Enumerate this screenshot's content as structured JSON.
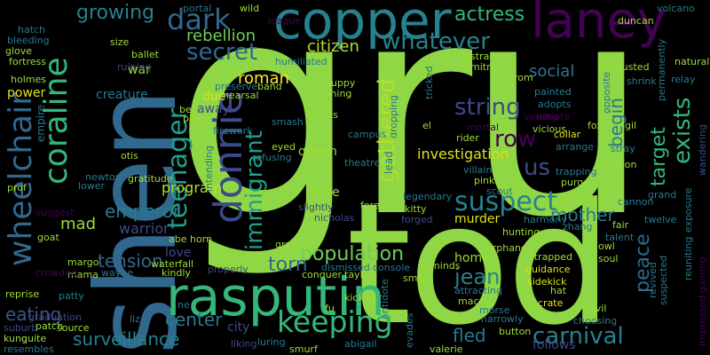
{
  "background": "#000000",
  "palette": [
    "#440154",
    "#3b528b",
    "#21908d",
    "#5dc963",
    "#fde725"
  ],
  "words": [
    {
      "text": "gru",
      "color": "#8fd744"
    },
    {
      "text": "tod",
      "color": "#8fd744"
    },
    {
      "text": "shen",
      "color": "#31688e"
    },
    {
      "text": "rasputin",
      "color": "#35b779"
    },
    {
      "text": "copper",
      "color": "#26828e"
    },
    {
      "text": "laney",
      "color": "#440154"
    },
    {
      "text": "donnie",
      "color": "#3e4989"
    },
    {
      "text": "wheelchair",
      "color": "#31688e"
    },
    {
      "text": "coraline",
      "color": "#35b779"
    },
    {
      "text": "keeping",
      "color": "#35b779"
    },
    {
      "text": "suspect",
      "color": "#26828e"
    },
    {
      "text": "dark",
      "color": "#31688e"
    },
    {
      "text": "teenager",
      "color": "#1f9e89"
    },
    {
      "text": "immigrant",
      "color": "#1f9e89"
    },
    {
      "text": "gathered",
      "color": "#b5de2b"
    },
    {
      "text": "whatever",
      "color": "#26828e"
    },
    {
      "text": "secret",
      "color": "#31688e"
    },
    {
      "text": "string",
      "color": "#3e4989"
    },
    {
      "text": "exists",
      "color": "#35b779"
    },
    {
      "text": "target",
      "color": "#35b779"
    },
    {
      "text": "carnival",
      "color": "#26828e"
    },
    {
      "text": "surveillance",
      "color": "#26828e"
    },
    {
      "text": "population",
      "color": "#6ece58"
    },
    {
      "text": "torn",
      "color": "#31688e"
    },
    {
      "text": "jean",
      "color": "#26828e"
    },
    {
      "text": "row",
      "color": "#440154"
    },
    {
      "text": "us",
      "color": "#3e4989"
    },
    {
      "text": "growing",
      "color": "#26828e"
    },
    {
      "text": "rebellion",
      "color": "#6ece58"
    },
    {
      "text": "actress",
      "color": "#35b779"
    },
    {
      "text": "citizen",
      "color": "#b5de2b"
    },
    {
      "text": "social",
      "color": "#2a788e"
    },
    {
      "text": "roman",
      "color": "#fde725"
    },
    {
      "text": "begin",
      "color": "#2a788e"
    },
    {
      "text": "program",
      "color": "#b5de2b"
    },
    {
      "text": "emperor",
      "color": "#2a788e"
    },
    {
      "text": "mother",
      "color": "#2a788e"
    },
    {
      "text": "peace",
      "color": "#31688e"
    },
    {
      "text": "tension",
      "color": "#31688e"
    },
    {
      "text": "investigation",
      "color": "#dde318"
    },
    {
      "text": "center",
      "color": "#2a788e"
    },
    {
      "text": "fled",
      "color": "#2a788e"
    },
    {
      "text": "eating",
      "color": "#3b528b"
    },
    {
      "text": "mad",
      "color": "#9fda3a"
    },
    {
      "text": "warrior",
      "color": "#3e4989"
    },
    {
      "text": "creature",
      "color": "#2a788e"
    },
    {
      "text": "queen",
      "color": "#9fda3a"
    },
    {
      "text": "tribe",
      "color": "#9fda3a"
    },
    {
      "text": "murder",
      "color": "#dde318"
    },
    {
      "text": "home",
      "color": "#9fda3a"
    },
    {
      "text": "follows",
      "color": "#3e4989"
    },
    {
      "text": "city",
      "color": "#3e4989"
    },
    {
      "text": "love",
      "color": "#3e4989"
    },
    {
      "text": "war",
      "color": "#9fda3a"
    },
    {
      "text": "power",
      "color": "#dde318"
    },
    {
      "text": "empire",
      "color": "#2a788e"
    },
    {
      "text": "due",
      "color": "#dde318"
    },
    {
      "text": "away",
      "color": "#3e4989"
    },
    {
      "text": "zhang",
      "color": "#2a788e"
    },
    {
      "text": "owl",
      "color": "#9fda3a"
    },
    {
      "text": "soul",
      "color": "#9fda3a"
    },
    {
      "text": "fox",
      "color": "#9fda3a"
    },
    {
      "text": "gil",
      "color": "#9fda3a"
    },
    {
      "text": "stray",
      "color": "#2a788e"
    },
    {
      "text": "minion",
      "color": "#9fda3a"
    },
    {
      "text": "cannon",
      "color": "#2a788e"
    },
    {
      "text": "grand",
      "color": "#2a788e"
    },
    {
      "text": "twelve",
      "color": "#2a788e"
    },
    {
      "text": "fair",
      "color": "#9fda3a"
    },
    {
      "text": "talent",
      "color": "#2a788e"
    },
    {
      "text": "inner",
      "color": "#9fda3a"
    },
    {
      "text": "harmony",
      "color": "#2a788e"
    },
    {
      "text": "orphaned",
      "color": "#9fda3a"
    },
    {
      "text": "hunting",
      "color": "#9fda3a"
    },
    {
      "text": "strapped",
      "color": "#9fda3a"
    },
    {
      "text": "guidance",
      "color": "#dde318"
    },
    {
      "text": "sidekick",
      "color": "#dde318"
    },
    {
      "text": "hat",
      "color": "#9fda3a"
    },
    {
      "text": "crate",
      "color": "#dde318"
    },
    {
      "text": "evil",
      "color": "#9fda3a"
    },
    {
      "text": "choosing",
      "color": "#2a788e"
    },
    {
      "text": "revived",
      "color": "#2a788e"
    },
    {
      "text": "suspected",
      "color": "#2a788e"
    },
    {
      "text": "reuniting",
      "color": "#2a788e"
    },
    {
      "text": "exposure",
      "color": "#2a788e"
    },
    {
      "text": "gaining",
      "color": "#440154"
    },
    {
      "text": "impressed",
      "color": "#440154"
    },
    {
      "text": "wandering",
      "color": "#3e4989"
    },
    {
      "text": "volcano",
      "color": "#2a788e"
    },
    {
      "text": "duncan",
      "color": "#9fda3a"
    },
    {
      "text": "natural",
      "color": "#9fda3a"
    },
    {
      "text": "relay",
      "color": "#2a788e"
    },
    {
      "text": "exhausted",
      "color": "#9fda3a"
    },
    {
      "text": "shrink",
      "color": "#2a788e"
    },
    {
      "text": "permanently",
      "color": "#2a788e"
    },
    {
      "text": "painted",
      "color": "#2a788e"
    },
    {
      "text": "adopts",
      "color": "#2a788e"
    },
    {
      "text": "opposite",
      "color": "#2a788e"
    },
    {
      "text": "initiate",
      "color": "#440154"
    },
    {
      "text": "vowing",
      "color": "#440154"
    },
    {
      "text": "vicious",
      "color": "#9fda3a"
    },
    {
      "text": "collar",
      "color": "#dde318"
    },
    {
      "text": "arrange",
      "color": "#2a788e"
    },
    {
      "text": "rider",
      "color": "#9fda3a"
    },
    {
      "text": "mortal",
      "color": "#440154"
    },
    {
      "text": "trapping",
      "color": "#2a788e"
    },
    {
      "text": "purge",
      "color": "#9fda3a"
    },
    {
      "text": "villain",
      "color": "#2a788e"
    },
    {
      "text": "pink",
      "color": "#9fda3a"
    },
    {
      "text": "scout",
      "color": "#2a788e"
    },
    {
      "text": "kitty",
      "color": "#9fda3a"
    },
    {
      "text": "forged",
      "color": "#3e4989"
    },
    {
      "text": "legendary",
      "color": "#2a788e"
    },
    {
      "text": "forever",
      "color": "#9fda3a"
    },
    {
      "text": "slightly",
      "color": "#3e4989"
    },
    {
      "text": "nicholas",
      "color": "#3e4989"
    },
    {
      "text": "granny",
      "color": "#9fda3a"
    },
    {
      "text": "da",
      "color": "#9fda3a"
    },
    {
      "text": "conquer",
      "color": "#9fda3a"
    },
    {
      "text": "dismissed",
      "color": "#2a788e"
    },
    {
      "text": "console",
      "color": "#2a788e"
    },
    {
      "text": "taylor",
      "color": "#9fda3a"
    },
    {
      "text": "reminds",
      "color": "#9fda3a"
    },
    {
      "text": "smile",
      "color": "#9fda3a"
    },
    {
      "text": "attracting",
      "color": "#2a788e"
    },
    {
      "text": "mac",
      "color": "#9fda3a"
    },
    {
      "text": "morse",
      "color": "#2a788e"
    },
    {
      "text": "narrowly",
      "color": "#2a788e"
    },
    {
      "text": "button",
      "color": "#9fda3a"
    },
    {
      "text": "valerie",
      "color": "#9fda3a"
    },
    {
      "text": "evades",
      "color": "#2a788e"
    },
    {
      "text": "kicked",
      "color": "#9fda3a"
    },
    {
      "text": "antidote",
      "color": "#2a788e"
    },
    {
      "text": "fu",
      "color": "#9fda3a"
    },
    {
      "text": "abigail",
      "color": "#2a788e"
    },
    {
      "text": "smurf",
      "color": "#9fda3a"
    },
    {
      "text": "luring",
      "color": "#2a788e"
    },
    {
      "text": "liking",
      "color": "#3e4989"
    },
    {
      "text": "ne",
      "color": "#2a788e"
    },
    {
      "text": "properly",
      "color": "#3e4989"
    },
    {
      "text": "kindly",
      "color": "#9fda3a"
    },
    {
      "text": "waterfall",
      "color": "#9fda3a"
    },
    {
      "text": "abe",
      "color": "#9fda3a"
    },
    {
      "text": "horn",
      "color": "#9fda3a"
    },
    {
      "text": "wayne",
      "color": "#2a788e"
    },
    {
      "text": "mama",
      "color": "#9fda3a"
    },
    {
      "text": "margo",
      "color": "#9fda3a"
    },
    {
      "text": "goat",
      "color": "#9fda3a"
    },
    {
      "text": "crowded",
      "color": "#440154"
    },
    {
      "text": "patty",
      "color": "#2a788e"
    },
    {
      "text": "reprise",
      "color": "#9fda3a"
    },
    {
      "text": "patch",
      "color": "#9fda3a"
    },
    {
      "text": "graduation",
      "color": "#3e4989"
    },
    {
      "text": "quite",
      "color": "#9fda3a"
    },
    {
      "text": "source",
      "color": "#9fda3a"
    },
    {
      "text": "suburb",
      "color": "#3e4989"
    },
    {
      "text": "kung",
      "color": "#9fda3a"
    },
    {
      "text": "resembles",
      "color": "#2a788e"
    },
    {
      "text": "liz",
      "color": "#2a788e"
    },
    {
      "text": "suggest",
      "color": "#440154"
    },
    {
      "text": "prof",
      "color": "#9fda3a"
    },
    {
      "text": "lower",
      "color": "#2a788e"
    },
    {
      "text": "newton",
      "color": "#2a788e"
    },
    {
      "text": "otis",
      "color": "#9fda3a"
    },
    {
      "text": "gratitude",
      "color": "#9fda3a"
    },
    {
      "text": "bet",
      "color": "#9fda3a"
    },
    {
      "text": "piggy",
      "color": "#9fda3a"
    },
    {
      "text": "firework",
      "color": "#2a788e"
    },
    {
      "text": "intending",
      "color": "#2a788e"
    },
    {
      "text": "refusing",
      "color": "#2a788e"
    },
    {
      "text": "eyed",
      "color": "#9fda3a"
    },
    {
      "text": "smash",
      "color": "#2a788e"
    },
    {
      "text": "lucy",
      "color": "#9fda3a"
    },
    {
      "text": "greets",
      "color": "#9fda3a"
    },
    {
      "text": "theatre",
      "color": "#2a788e"
    },
    {
      "text": "campus",
      "color": "#2a788e"
    },
    {
      "text": "dropping",
      "color": "#2a788e"
    },
    {
      "text": "lead",
      "color": "#2a788e"
    },
    {
      "text": "el",
      "color": "#9fda3a"
    },
    {
      "text": "tricked",
      "color": "#2a788e"
    },
    {
      "text": "manning",
      "color": "#9fda3a"
    },
    {
      "text": "puppy",
      "color": "#9fda3a"
    },
    {
      "text": "rehearsal",
      "color": "#9fda3a"
    },
    {
      "text": "preserve",
      "color": "#2a788e"
    },
    {
      "text": "band",
      "color": "#9fda3a"
    },
    {
      "text": "humiliated",
      "color": "#2a788e"
    },
    {
      "text": "dimitri",
      "color": "#9fda3a"
    },
    {
      "text": "prom",
      "color": "#9fda3a"
    },
    {
      "text": "distracted",
      "color": "#9fda3a"
    },
    {
      "text": "league",
      "color": "#440154"
    },
    {
      "text": "wild",
      "color": "#9fda3a"
    },
    {
      "text": "portal",
      "color": "#2a788e"
    },
    {
      "text": "ballet",
      "color": "#9fda3a"
    },
    {
      "text": "ruining",
      "color": "#3e4989"
    },
    {
      "text": "size",
      "color": "#9fda3a"
    },
    {
      "text": "holmes",
      "color": "#9fda3a"
    },
    {
      "text": "fortress",
      "color": "#9fda3a"
    },
    {
      "text": "glove",
      "color": "#9fda3a"
    },
    {
      "text": "bleeding",
      "color": "#2a788e"
    },
    {
      "text": "hatch",
      "color": "#2a788e"
    }
  ]
}
